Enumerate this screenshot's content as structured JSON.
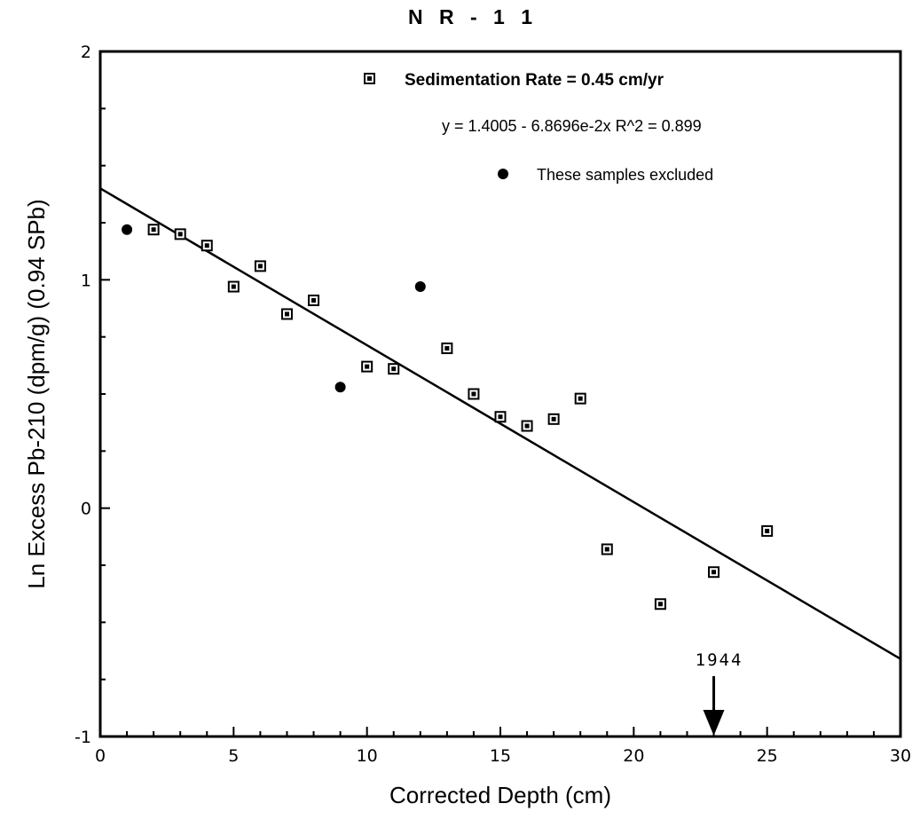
{
  "chart_data": {
    "type": "scatter",
    "title": "N R - 1 1",
    "xlabel": "Corrected Depth (cm)",
    "ylabel": "Ln Excess Pb-210 (dpm/g) (0.94 SPb)",
    "xlim": [
      0,
      30
    ],
    "ylim": [
      -1,
      2
    ],
    "x_ticks": [
      "0",
      "5",
      "10",
      "15",
      "20",
      "25",
      "30"
    ],
    "y_ticks": [
      "-1",
      "0",
      "1",
      "2"
    ],
    "grid": false,
    "legend_position": "top-right",
    "series": [
      {
        "name": "Sedimentation Rate = 0.45 cm/yr",
        "marker": "square",
        "points": [
          [
            2,
            1.22
          ],
          [
            3,
            1.2
          ],
          [
            4,
            1.15
          ],
          [
            5,
            0.97
          ],
          [
            6,
            1.06
          ],
          [
            7,
            0.85
          ],
          [
            8,
            0.91
          ],
          [
            10,
            0.62
          ],
          [
            11,
            0.61
          ],
          [
            13,
            0.7
          ],
          [
            14,
            0.5
          ],
          [
            15,
            0.4
          ],
          [
            16,
            0.36
          ],
          [
            17,
            0.39
          ],
          [
            18,
            0.48
          ],
          [
            19,
            -0.18
          ],
          [
            21,
            -0.42
          ],
          [
            23,
            -0.28
          ],
          [
            25,
            -0.1
          ]
        ]
      },
      {
        "name": "These samples excluded",
        "marker": "filled-circle",
        "points": [
          [
            1,
            1.22
          ],
          [
            9,
            0.53
          ],
          [
            12,
            0.97
          ]
        ]
      }
    ],
    "fit_line": {
      "equation": "y = 1.4005 - 6.8696e-2x   R^2 = 0.899",
      "intercept": 1.4005,
      "slope": -0.068696
    },
    "annotation": {
      "label": "1944",
      "x": 23
    }
  }
}
